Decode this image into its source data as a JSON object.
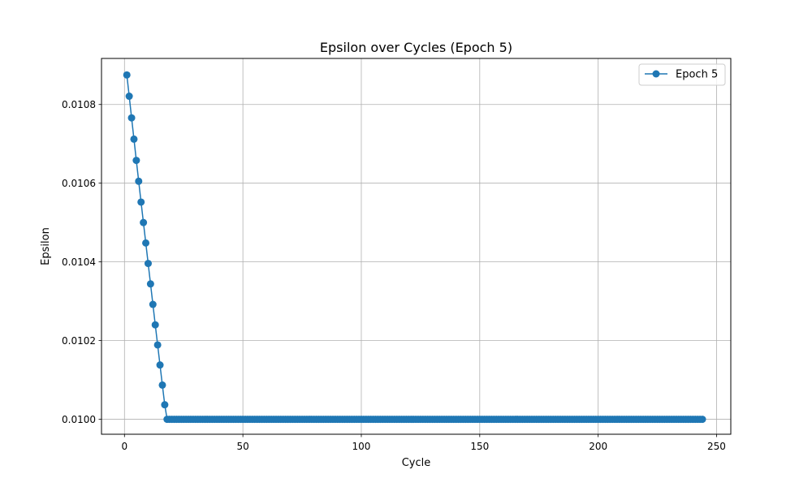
{
  "chart_data": {
    "type": "line",
    "title": "Epsilon over Cycles (Epoch 5)",
    "xlabel": "Cycle",
    "ylabel": "Epsilon",
    "xlim": [
      -9.7,
      256
    ],
    "ylim": [
      0.009962,
      0.010917
    ],
    "x_ticks": [
      0,
      50,
      100,
      150,
      200,
      250
    ],
    "x_tick_labels": [
      "0",
      "50",
      "100",
      "150",
      "200",
      "250"
    ],
    "y_ticks": [
      0.01,
      0.0102,
      0.0104,
      0.0106,
      0.0108
    ],
    "y_tick_labels": [
      "0.0100",
      "0.0102",
      "0.0104",
      "0.0106",
      "0.0108"
    ],
    "grid": true,
    "legend_position": "top-right",
    "series": [
      {
        "name": "Epoch 5",
        "color": "#1f77b4",
        "marker": "circle",
        "x_start": 1,
        "x_end": 244,
        "values_head": [
          0.010875,
          0.010821,
          0.010766,
          0.010712,
          0.010658,
          0.010605,
          0.010552,
          0.0105,
          0.010448,
          0.010396,
          0.010344,
          0.010292,
          0.01024,
          0.010189,
          0.010138,
          0.010087,
          0.010037
        ],
        "plateau_value": 0.01
      }
    ]
  }
}
